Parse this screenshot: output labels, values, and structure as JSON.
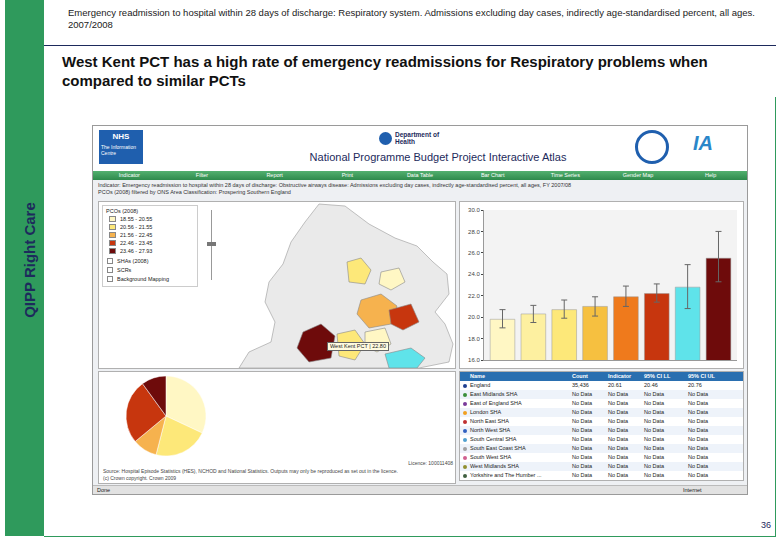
{
  "slide": {
    "header": "Emergency readmission to hospital within 28 days of discharge: Respiratory system. Admissions excluding day cases, indirectly age-standardised percent, all ages. 2007/2008",
    "title": "West Kent PCT has a high rate of emergency readmissions for Respiratory problems when compared to similar PCTs",
    "side_label": "QIPP Right Care",
    "page_number": "36"
  },
  "atlas": {
    "logo_nhs": "NHS",
    "logo_nhs_sub": "The Information Centre",
    "logo_dh": "Department of Health",
    "logo_ia": "IA",
    "app_title": "National Programme Budget Project Interactive Atlas",
    "menu": [
      "Indicator",
      "Filter",
      "Report",
      "Print",
      "Data Table",
      "Bar Chart",
      "Time Series",
      "Gender Map",
      "Help"
    ],
    "indicator": "Indicator: Emergency readmission to hospital within 28 days of discharge: Obstructive airways disease: Admissions excluding day cases, indirectly age-standardised percent, all ages, FY 2007/08",
    "filter": "PCOs (2008) filtered by ONS Area Classification: Prospering Southern England",
    "map": {
      "legend_title": "PCOs (2008)",
      "legend": [
        {
          "label": "18.55 - 20.55",
          "color": "#fff7c4"
        },
        {
          "label": "20.56 - 21.55",
          "color": "#fde879"
        },
        {
          "label": "21.56 - 22.45",
          "color": "#f6b24e"
        },
        {
          "label": "22.46 - 23.45",
          "color": "#c7360e"
        },
        {
          "label": "23.46 - 27.93",
          "color": "#6e0b0b"
        }
      ],
      "layers": [
        "SHAs (2008)",
        "SCRs",
        "Background Mapping"
      ],
      "tooltip": "West Kent PCT | 22.80"
    },
    "source": "Source: Hospital Episode Statistics (HES), NCHOD and National Statistics. Outputs may only be reproduced as set out in the licence.",
    "licence": "Licence: 100011408",
    "copyright": "(c) Crown copyright. Crown 2009",
    "table": {
      "header": [
        "Name",
        "Count",
        "Indicator",
        "95% CI LL",
        "95% CI UL"
      ],
      "rows": [
        [
          "England",
          "35,436",
          "20.61",
          "20.46",
          "20.76"
        ],
        [
          "East Midlands SHA",
          "No Data",
          "No Data",
          "No Data",
          "No Data"
        ],
        [
          "East of England SHA",
          "No Data",
          "No Data",
          "No Data",
          "No Data"
        ],
        [
          "London SHA",
          "No Data",
          "No Data",
          "No Data",
          "No Data"
        ],
        [
          "North East SHA",
          "No Data",
          "No Data",
          "No Data",
          "No Data"
        ],
        [
          "North West SHA",
          "No Data",
          "No Data",
          "No Data",
          "No Data"
        ],
        [
          "South Central SHA",
          "No Data",
          "No Data",
          "No Data",
          "No Data"
        ],
        [
          "South East Coast SHA",
          "No Data",
          "No Data",
          "No Data",
          "No Data"
        ],
        [
          "South West SHA",
          "No Data",
          "No Data",
          "No Data",
          "No Data"
        ],
        [
          "West Midlands SHA",
          "No Data",
          "No Data",
          "No Data",
          "No Data"
        ],
        [
          "Yorkshire and The Humber ...",
          "No Data",
          "No Data",
          "No Data",
          "No Data"
        ]
      ]
    },
    "status_left": "Done",
    "status_right": "Internet"
  },
  "chart_data": [
    {
      "type": "bar",
      "categories": [
        null,
        null,
        null,
        null,
        null,
        null,
        null,
        null
      ],
      "values": [
        19.8,
        20.3,
        20.7,
        21.0,
        21.9,
        22.2,
        22.8,
        25.5
      ],
      "ci_lower": [
        19.0,
        19.5,
        19.9,
        20.1,
        21.0,
        21.4,
        20.8,
        23.3
      ],
      "ci_upper": [
        20.7,
        21.1,
        21.6,
        21.9,
        22.9,
        23.1,
        24.9,
        28.0
      ],
      "colors": [
        "#fff7c4",
        "#fdf0a0",
        "#fde879",
        "#f6c040",
        "#ef7a1c",
        "#c7360e",
        "#5fe3ea",
        "#6e0b0b"
      ],
      "ylim": [
        16,
        30
      ],
      "yticks": [
        {
          "value": 16,
          "label": "16.0"
        },
        {
          "value": 18,
          "label": "18.0"
        },
        {
          "value": 20,
          "label": "20.0"
        },
        {
          "value": 22,
          "label": "22.0"
        },
        {
          "value": 24,
          "label": "24.0"
        },
        {
          "value": 26,
          "label": "26.0"
        },
        {
          "value": 28,
          "label": "28.0"
        },
        {
          "value": 30,
          "label": "30.0"
        }
      ],
      "tick_labels": "y",
      "grid": false
    },
    {
      "type": "pie",
      "values": [
        32,
        22,
        10,
        26,
        10
      ],
      "colors": [
        "#fff7c4",
        "#fde879",
        "#f6b24e",
        "#c7360e",
        "#6e0b0b"
      ]
    }
  ]
}
